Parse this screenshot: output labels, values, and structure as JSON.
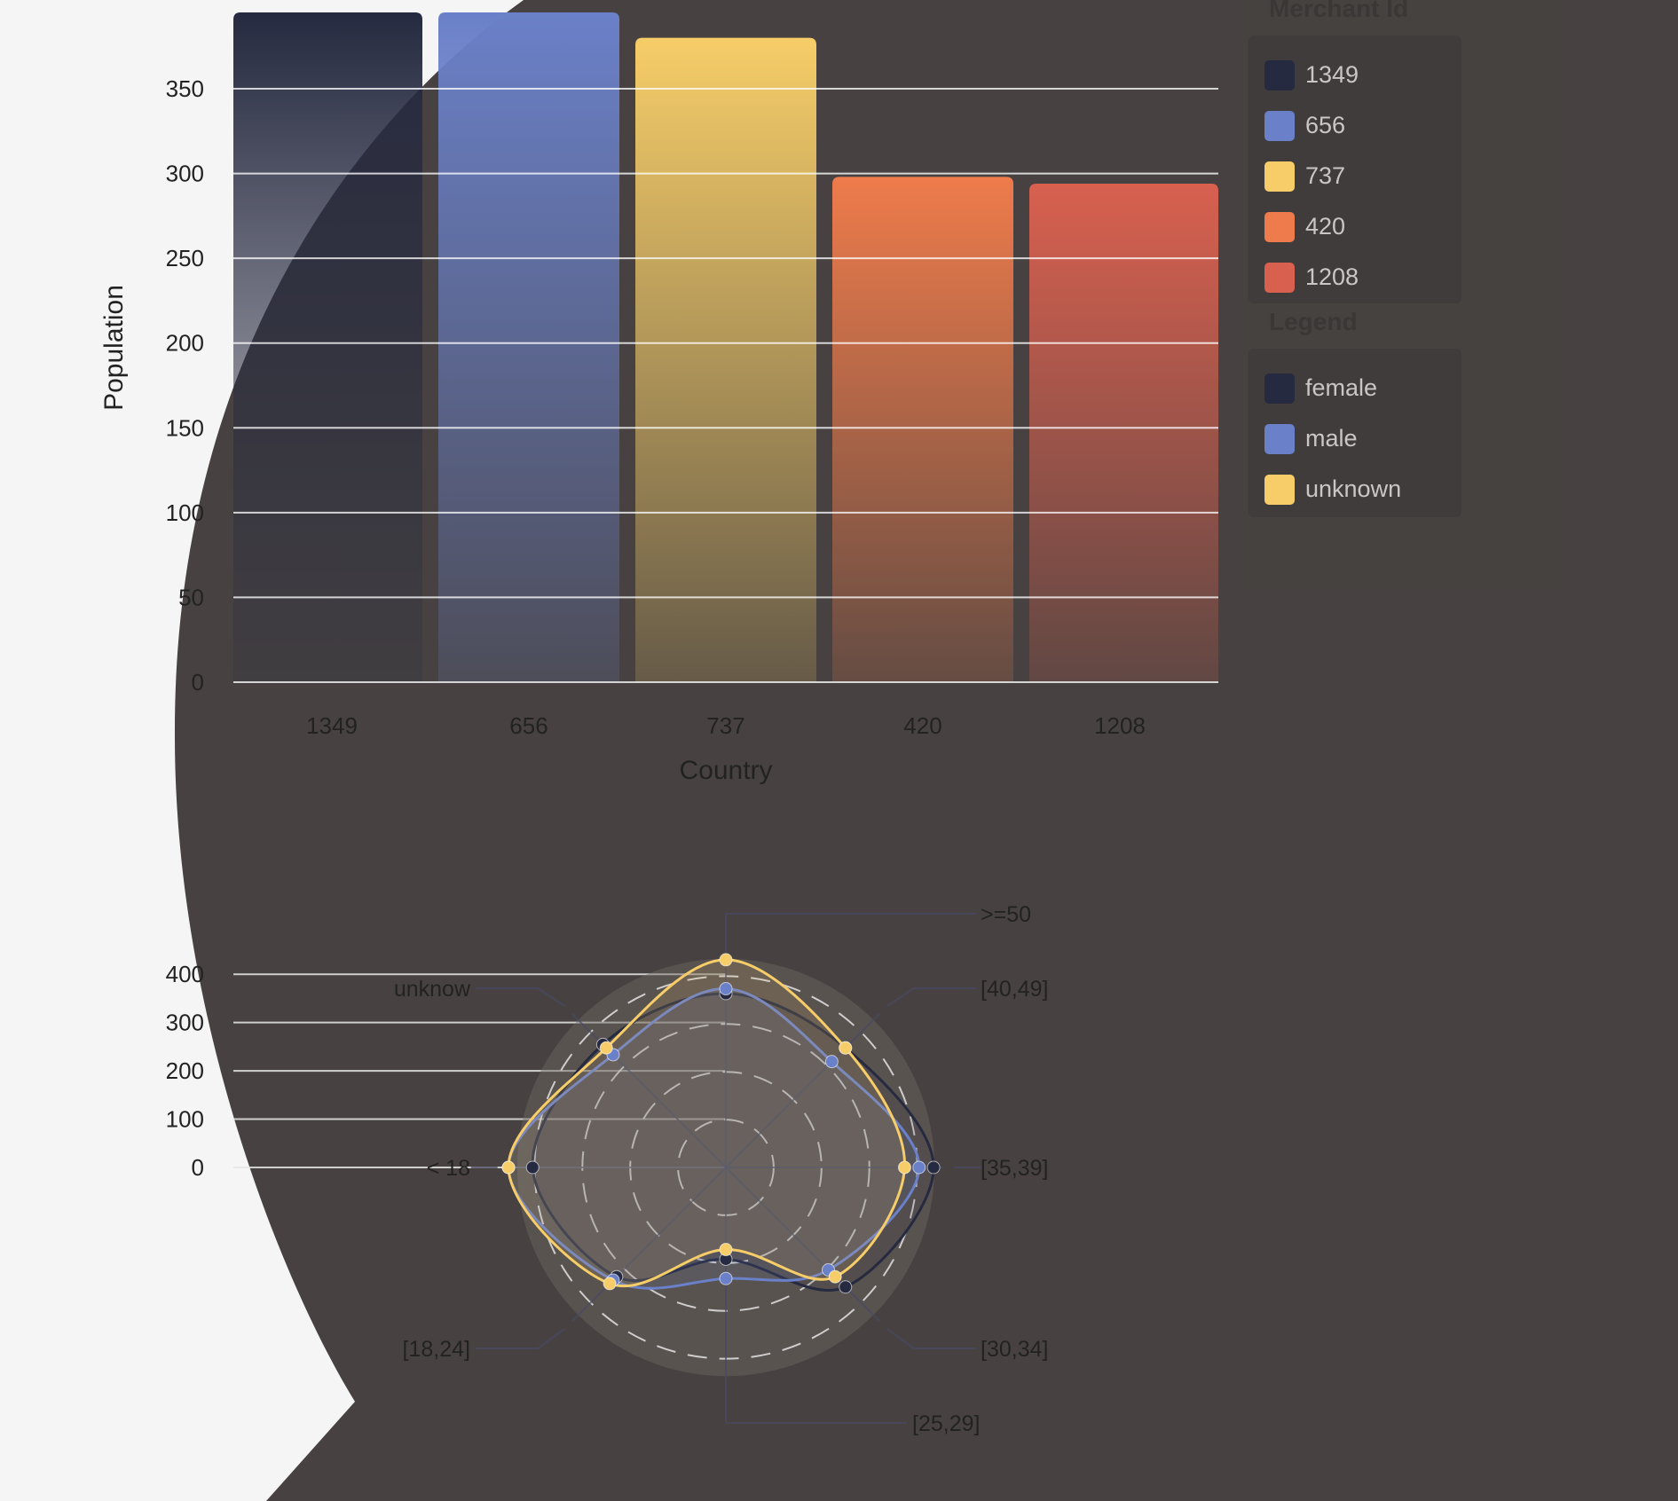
{
  "chart_data": [
    {
      "type": "bar",
      "categories": [
        "1349",
        "656",
        "737",
        "420",
        "1208"
      ],
      "values": [
        395,
        395,
        380,
        298,
        294
      ],
      "colors": [
        "#262a40",
        "#6a80c8",
        "#f6cd68",
        "#ee7b4b",
        "#d8604f"
      ],
      "xlabel": "Country",
      "ylabel": "Population",
      "yticks": [
        0,
        50,
        100,
        150,
        200,
        250,
        300,
        350
      ],
      "ylim": [
        0,
        395
      ],
      "grid": true
    },
    {
      "type": "radar",
      "axes": [
        ">=50",
        "[40,49]",
        "[35,39]",
        "[30,34]",
        "[25,29]",
        "[18,24]",
        "< 18",
        "unknow"
      ],
      "series": [
        {
          "name": "female",
          "color": "#262a40",
          "values": [
            360,
            350,
            430,
            350,
            190,
            320,
            400,
            360
          ]
        },
        {
          "name": "male",
          "color": "#6a80c8",
          "values": [
            370,
            310,
            400,
            300,
            230,
            330,
            450,
            330
          ]
        },
        {
          "name": "unknown",
          "color": "#f6cd68",
          "values": [
            430,
            350,
            370,
            320,
            170,
            340,
            450,
            350
          ]
        }
      ],
      "rticks": [
        0,
        100,
        200,
        300,
        400
      ],
      "rmax": 450
    }
  ],
  "legends": {
    "merchant": {
      "title": "Merchant Id",
      "items": [
        {
          "label": "1349",
          "color": "#262a40"
        },
        {
          "label": "656",
          "color": "#6a80c8"
        },
        {
          "label": "737",
          "color": "#f6cd68"
        },
        {
          "label": "420",
          "color": "#ee7b4b"
        },
        {
          "label": "1208",
          "color": "#d8604f"
        }
      ]
    },
    "gender": {
      "title": "Legend",
      "items": [
        {
          "label": "female",
          "color": "#262a40"
        },
        {
          "label": "male",
          "color": "#6a80c8"
        },
        {
          "label": "unknown",
          "color": "#f6cd68"
        }
      ]
    }
  }
}
